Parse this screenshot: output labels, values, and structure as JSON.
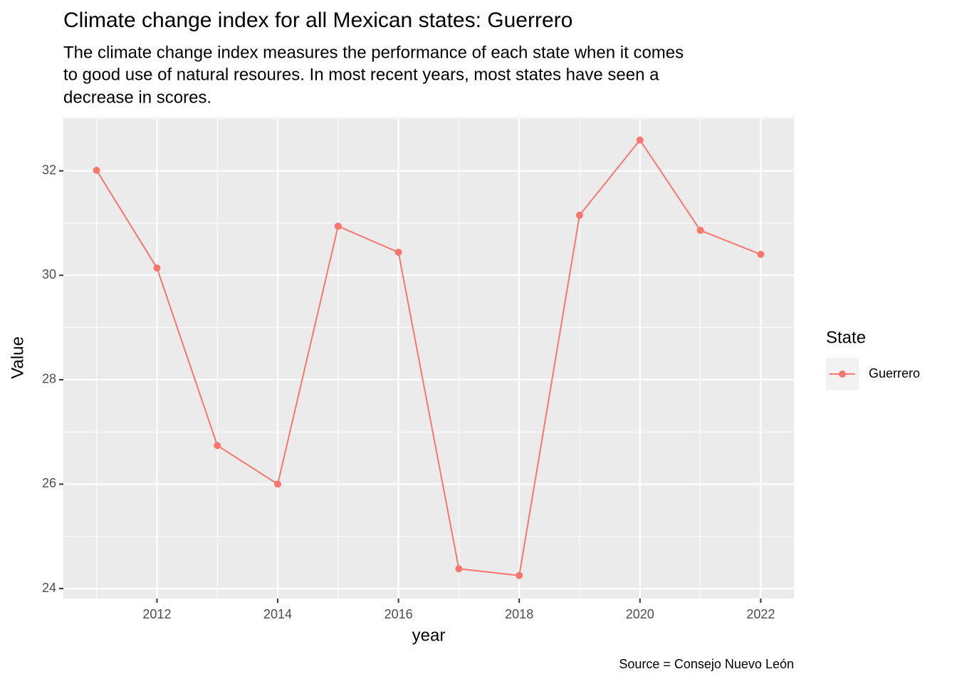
{
  "chart_data": {
    "type": "line",
    "title": "Climate change index for all Mexican states: Guerrero",
    "subtitle": [
      "The climate change index measures the performance of each state when it comes",
      "to good use of natural resoures. In most recent years, most states have seen a",
      "decrease in scores."
    ],
    "caption": "Source = Consejo Nuevo León",
    "x_label": "year",
    "y_label": "Value",
    "legend_title": "State",
    "legend_position": "right",
    "x": [
      2011,
      2012,
      2013,
      2014,
      2015,
      2016,
      2017,
      2018,
      2019,
      2020,
      2021,
      2022
    ],
    "series": [
      {
        "name": "Guerrero",
        "color": "#F8766D",
        "values": [
          32.01,
          30.14,
          26.74,
          26.0,
          30.94,
          30.44,
          24.38,
          24.25,
          31.15,
          32.59,
          30.86,
          30.4
        ]
      }
    ],
    "xlim": [
      2010.45,
      2022.55
    ],
    "xticks": [
      2012,
      2014,
      2016,
      2018,
      2020,
      2022
    ],
    "ylim": [
      23.81,
      33.02
    ],
    "yticks": [
      24,
      26,
      28,
      30,
      32
    ],
    "grid": true
  }
}
